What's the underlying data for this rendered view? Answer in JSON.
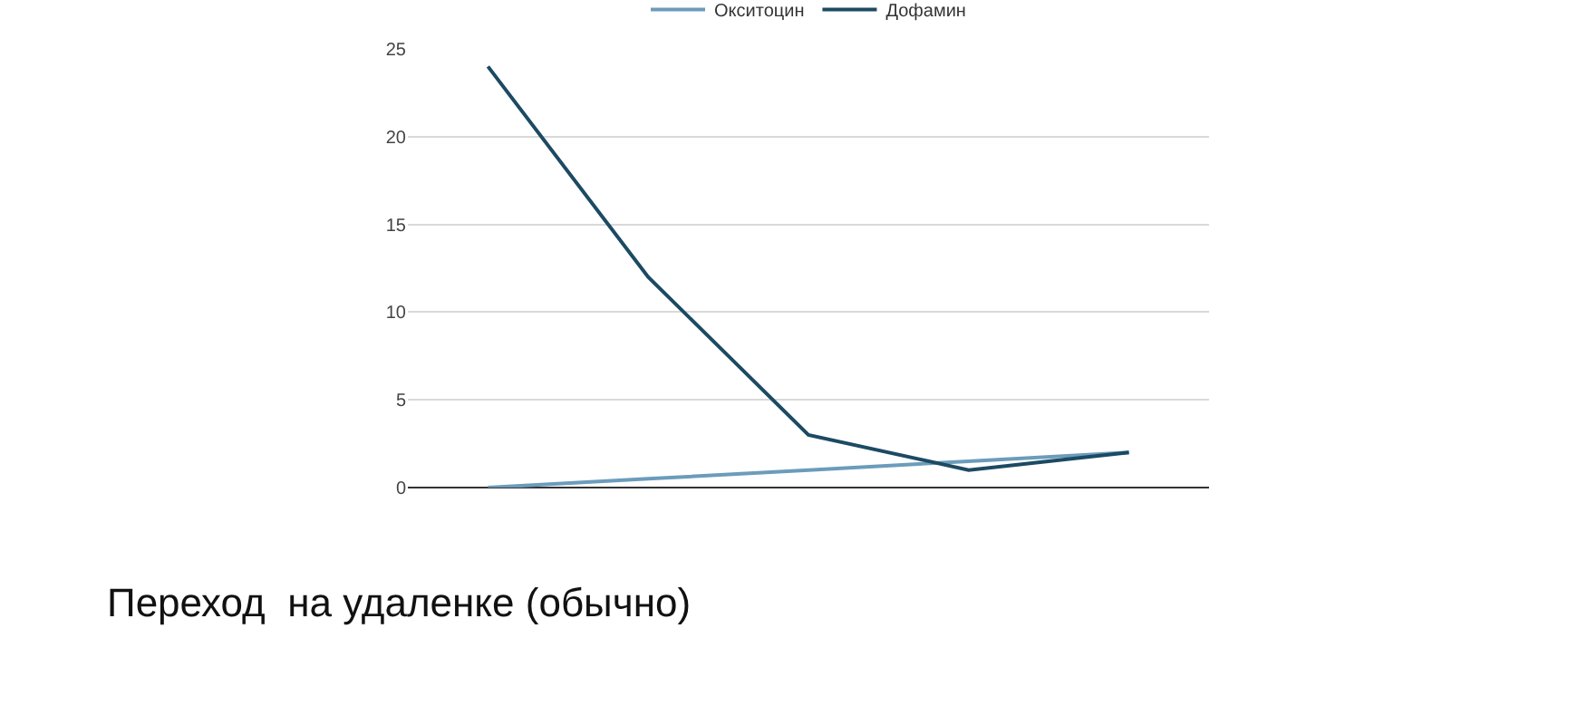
{
  "chart_data": {
    "type": "line",
    "categories": [
      null,
      null,
      null,
      null,
      null
    ],
    "series": [
      {
        "name": "Окситоцин",
        "color": "#6b9cbb",
        "values": [
          0,
          0.5,
          1,
          1.5,
          2
        ]
      },
      {
        "name": "Дофамин",
        "color": "#1c4a63",
        "values": [
          24,
          12,
          3,
          1,
          2
        ]
      }
    ],
    "ylim": [
      0,
      25
    ],
    "yticks": [
      0,
      5,
      10,
      15,
      20,
      25
    ],
    "grid": "y",
    "legend": "top",
    "tick_labels": "y",
    "marker": "none",
    "annotations": [
      "Переход  на удаленке (обычно)"
    ]
  }
}
